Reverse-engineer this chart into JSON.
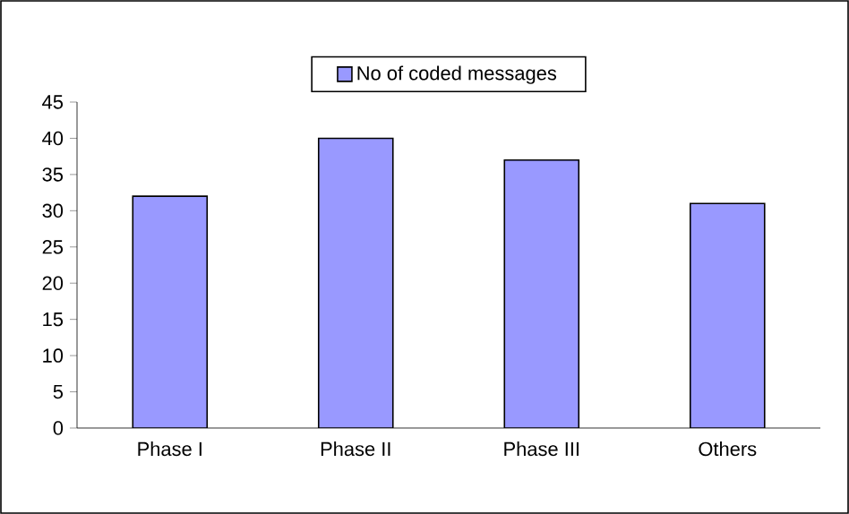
{
  "chart_data": {
    "type": "bar",
    "categories": [
      "Phase I",
      "Phase II",
      "Phase III",
      "Others"
    ],
    "series": [
      {
        "name": "No of coded messages",
        "color": "#9999ff",
        "values": [
          32,
          40,
          37,
          31
        ]
      }
    ],
    "ylim": [
      0,
      45
    ],
    "yticks": [
      0,
      5,
      10,
      15,
      20,
      25,
      30,
      35,
      40,
      45
    ],
    "grid": false,
    "legend": "top"
  }
}
